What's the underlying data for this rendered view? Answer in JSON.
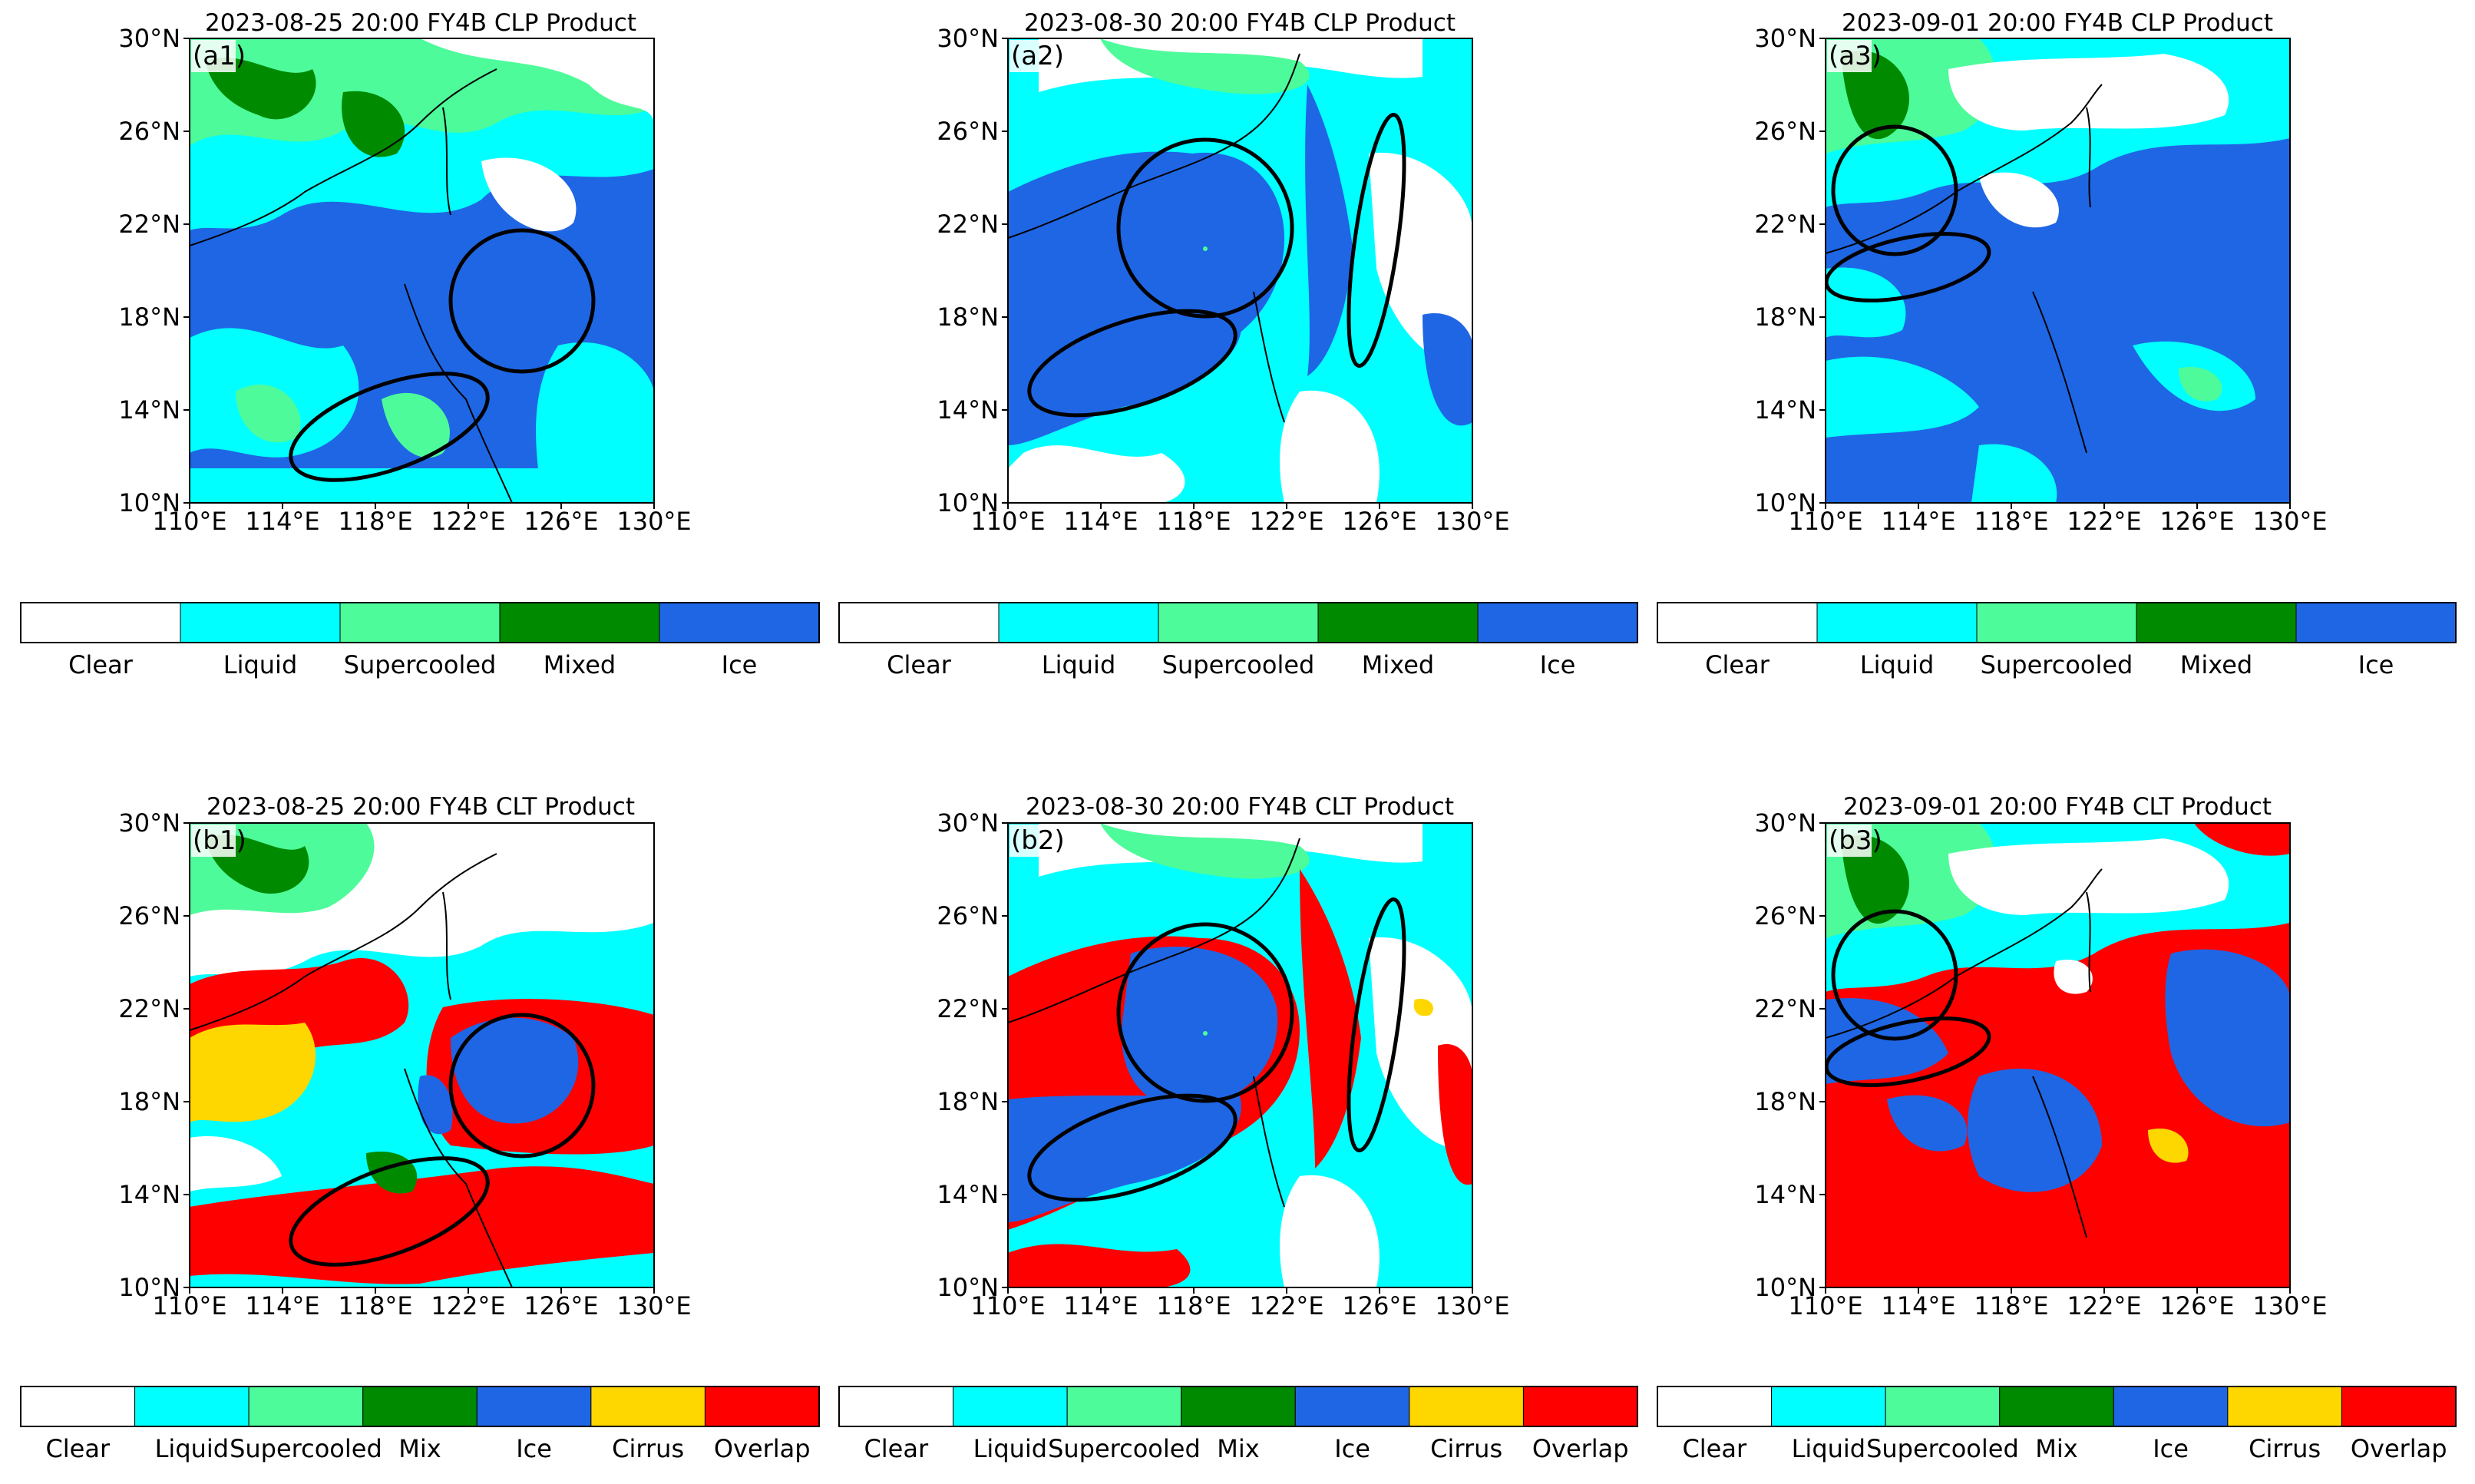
{
  "figure": {
    "panels": [
      {
        "id": "a1",
        "label": "(a1)",
        "title": "2023-08-25 20:00 FY4B CLP Product",
        "product": "CLP",
        "date": "2023-08-25"
      },
      {
        "id": "a2",
        "label": "(a2)",
        "title": "2023-08-30 20:00 FY4B CLP Product",
        "product": "CLP",
        "date": "2023-08-30"
      },
      {
        "id": "a3",
        "label": "(a3)",
        "title": "2023-09-01 20:00 FY4B CLP Product",
        "product": "CLP",
        "date": "2023-09-01"
      },
      {
        "id": "b1",
        "label": "(b1)",
        "title": "2023-08-25 20:00 FY4B CLT Product",
        "product": "CLT",
        "date": "2023-08-25"
      },
      {
        "id": "b2",
        "label": "(b2)",
        "title": "2023-08-30 20:00 FY4B CLT Product",
        "product": "CLT",
        "date": "2023-08-30"
      },
      {
        "id": "b3",
        "label": "(b3)",
        "title": "2023-09-01 20:00 FY4B CLT Product",
        "product": "CLT",
        "date": "2023-09-01"
      }
    ],
    "axes": {
      "lat_ticks": [
        "10°N",
        "14°N",
        "18°N",
        "22°N",
        "26°N",
        "30°N"
      ],
      "lon_ticks": [
        "110°E",
        "114°E",
        "118°E",
        "122°E",
        "126°E",
        "130°E"
      ],
      "lat_range": [
        10,
        30
      ],
      "lon_range": [
        110,
        130
      ]
    },
    "colorbars": {
      "CLP": [
        {
          "label": "Clear",
          "color": "#ffffff"
        },
        {
          "label": "Liquid",
          "color": "#00ffff"
        },
        {
          "label": "Supercooled",
          "color": "#4dfb9a"
        },
        {
          "label": "Mixed",
          "color": "#008a00"
        },
        {
          "label": "Ice",
          "color": "#1f66e5"
        }
      ],
      "CLT": [
        {
          "label": "Clear",
          "color": "#ffffff"
        },
        {
          "label": "Liquid",
          "color": "#00ffff"
        },
        {
          "label": "Supercooled",
          "color": "#4dfb9a"
        },
        {
          "label": "Mix",
          "color": "#008a00"
        },
        {
          "label": "Ice",
          "color": "#1f66e5"
        },
        {
          "label": "Cirrus",
          "color": "#ffd700"
        },
        {
          "label": "Overlap",
          "color": "#ff0000"
        }
      ]
    },
    "colors": {
      "clear": "#ffffff",
      "liquid": "#00ffff",
      "supercooled": "#4dfb9a",
      "mixed": "#008a00",
      "ice": "#1f66e5",
      "cirrus": "#ffd700",
      "overlap": "#ff0000"
    }
  }
}
